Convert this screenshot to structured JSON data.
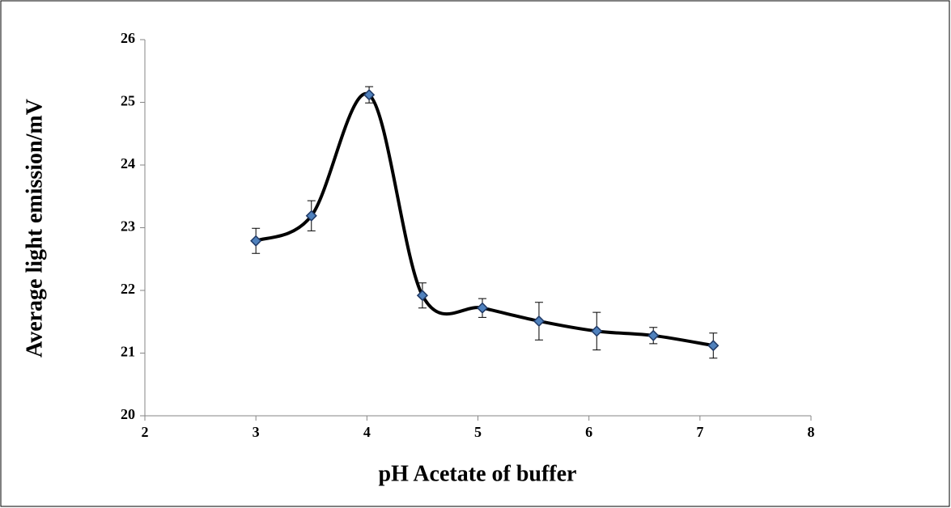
{
  "chart_data": {
    "type": "scatter",
    "x_label": "pH Acetate of buffer",
    "y_label": "Average light emission/mV",
    "x": [
      3.0,
      3.5,
      4.02,
      4.5,
      5.04,
      5.55,
      6.07,
      6.58,
      7.12
    ],
    "values": [
      22.79,
      23.19,
      25.12,
      21.92,
      21.72,
      21.51,
      21.35,
      21.28,
      21.12
    ],
    "errors": [
      0.2,
      0.24,
      0.13,
      0.2,
      0.15,
      0.3,
      0.3,
      0.13,
      0.2
    ],
    "line_color": "#000000",
    "marker_color": "#4f81bd",
    "xlim": [
      2,
      8
    ],
    "xticks": [
      2,
      3,
      4,
      5,
      6,
      7,
      8
    ],
    "ylim": [
      20,
      26
    ],
    "yticks": [
      20,
      21,
      22,
      23,
      24,
      25,
      26
    ],
    "smooth": true
  }
}
